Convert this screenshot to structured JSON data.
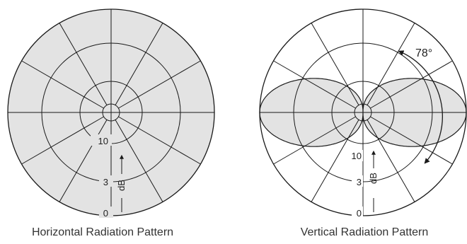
{
  "colors": {
    "stroke": "#1a1a1a",
    "fill": "#e3e3e3",
    "background": "#ffffff",
    "text": "#222222"
  },
  "diagrams": [
    {
      "id": "horizontal",
      "caption": "Horizontal Radiation Pattern",
      "pattern": "omnidirectional",
      "ring_labels": [
        "10",
        "3",
        "0"
      ],
      "unit_label": "dB"
    },
    {
      "id": "vertical",
      "caption": "Vertical Radiation Pattern",
      "pattern": "figure-eight",
      "beamwidth_label": "78°",
      "ring_labels": [
        "10",
        "3",
        "0"
      ],
      "unit_label": "dB"
    }
  ]
}
